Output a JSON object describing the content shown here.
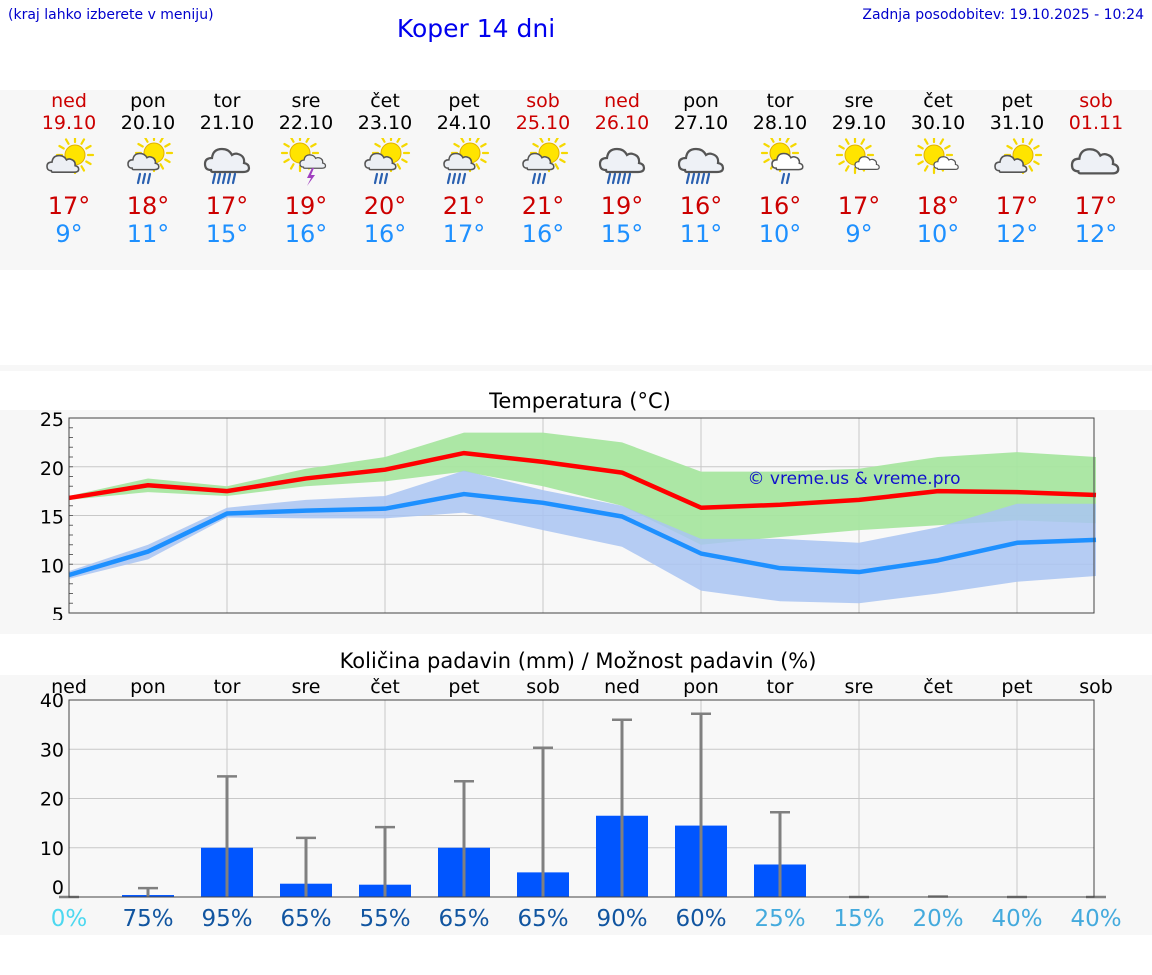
{
  "header": {
    "hint": "(kraj lahko izberete v meniju)",
    "title": "Koper 14 dni",
    "updated": "Zadnja posodobitev: 19.10.2025 - 10:24"
  },
  "days": [
    {
      "name": "ned",
      "date": "19.10",
      "weekend": true,
      "icon": "partly-cloudy-icon",
      "tmax": "17°",
      "tmin": "9°"
    },
    {
      "name": "pon",
      "date": "20.10",
      "weekend": false,
      "icon": "sun-cloud-rain-icon",
      "tmax": "18°",
      "tmin": "11°"
    },
    {
      "name": "tor",
      "date": "21.10",
      "weekend": false,
      "icon": "cloud-heavy-rain-icon",
      "tmax": "17°",
      "tmin": "15°"
    },
    {
      "name": "sre",
      "date": "22.10",
      "weekend": false,
      "icon": "sun-cloud-thunder-icon",
      "tmax": "19°",
      "tmin": "16°"
    },
    {
      "name": "čet",
      "date": "23.10",
      "weekend": false,
      "icon": "sun-cloud-rain-icon",
      "tmax": "20°",
      "tmin": "16°"
    },
    {
      "name": "pet",
      "date": "24.10",
      "weekend": false,
      "icon": "sun-cloud-heavy-rain-icon",
      "tmax": "21°",
      "tmin": "17°"
    },
    {
      "name": "sob",
      "date": "25.10",
      "weekend": true,
      "icon": "sun-cloud-rain-icon",
      "tmax": "21°",
      "tmin": "16°"
    },
    {
      "name": "ned",
      "date": "26.10",
      "weekend": true,
      "icon": "cloud-heavy-rain-icon",
      "tmax": "19°",
      "tmin": "15°"
    },
    {
      "name": "pon",
      "date": "27.10",
      "weekend": false,
      "icon": "cloud-heavy-rain-icon",
      "tmax": "16°",
      "tmin": "11°"
    },
    {
      "name": "tor",
      "date": "28.10",
      "weekend": false,
      "icon": "sun-cloud-light-rain-icon",
      "tmax": "16°",
      "tmin": "10°"
    },
    {
      "name": "sre",
      "date": "29.10",
      "weekend": false,
      "icon": "sun-small-cloud-icon",
      "tmax": "17°",
      "tmin": "9°"
    },
    {
      "name": "čet",
      "date": "30.10",
      "weekend": false,
      "icon": "sun-small-cloud-icon",
      "tmax": "18°",
      "tmin": "10°"
    },
    {
      "name": "pet",
      "date": "31.10",
      "weekend": false,
      "icon": "partly-cloudy-icon",
      "tmax": "17°",
      "tmin": "12°"
    },
    {
      "name": "sob",
      "date": "01.11",
      "weekend": true,
      "icon": "cloudy-icon",
      "tmax": "17°",
      "tmin": "12°"
    }
  ],
  "colors": {
    "max_line": "#ff0000",
    "max_band": "#a8e6a0",
    "min_line": "#1e90ff",
    "min_band": "#a9c4f2",
    "bar": "#0055ff",
    "whisker": "#808080",
    "weekend": "#cc0000",
    "min_text": "#1e90ff"
  },
  "chart_data": [
    {
      "type": "line",
      "title": "Temperatura (°C)",
      "watermark": "© vreme.us & vreme.pro",
      "ylim": [
        5,
        25
      ],
      "yticks": [
        "5",
        "10",
        "15",
        "20",
        "25"
      ],
      "series": [
        {
          "name": "max",
          "values": [
            16.8,
            18.1,
            17.5,
            18.8,
            19.7,
            21.4,
            20.5,
            19.4,
            15.8,
            16.1,
            16.6,
            17.5,
            17.4,
            17.1
          ],
          "upper": [
            17.0,
            18.8,
            18.0,
            19.8,
            21.0,
            23.5,
            23.5,
            22.5,
            19.5,
            19.5,
            19.8,
            21.0,
            21.5,
            21.0
          ],
          "lower": [
            16.6,
            17.4,
            17.0,
            18.0,
            18.5,
            19.5,
            18.0,
            16.0,
            12.0,
            12.8,
            13.5,
            14.0,
            14.5,
            14.2
          ]
        },
        {
          "name": "min",
          "values": [
            8.9,
            11.3,
            15.2,
            15.5,
            15.7,
            17.2,
            16.3,
            14.9,
            11.1,
            9.6,
            9.2,
            10.4,
            12.2,
            12.5
          ],
          "upper": [
            9.3,
            12.0,
            15.8,
            16.6,
            17.0,
            19.6,
            17.6,
            16.0,
            12.6,
            12.6,
            12.2,
            13.8,
            16.2,
            16.2
          ],
          "lower": [
            8.5,
            10.5,
            14.8,
            14.7,
            14.7,
            15.3,
            13.5,
            11.8,
            7.3,
            6.2,
            6.0,
            7.0,
            8.2,
            8.8
          ]
        }
      ]
    },
    {
      "type": "bar",
      "title": "Količina padavin (mm) / Možnost padavin (%)",
      "ylim": [
        0,
        40
      ],
      "yticks": [
        "0",
        "10",
        "20",
        "30",
        "40"
      ],
      "categories": [
        "ned",
        "pon",
        "tor",
        "sre",
        "čet",
        "pet",
        "sob",
        "ned",
        "pon",
        "tor",
        "sre",
        "čet",
        "pet",
        "sob"
      ],
      "values": [
        0,
        0.4,
        10,
        2.7,
        2.5,
        10,
        5,
        16.5,
        14.5,
        6.6,
        0,
        0,
        0,
        0
      ],
      "max_values": [
        0,
        1.8,
        24.5,
        12,
        14.2,
        23.5,
        30.3,
        36,
        37.2,
        17.2,
        0,
        0.1,
        0,
        0
      ],
      "probability": [
        "0%",
        "75%",
        "95%",
        "65%",
        "55%",
        "65%",
        "65%",
        "90%",
        "60%",
        "25%",
        "15%",
        "20%",
        "40%",
        "40%"
      ],
      "prob_colors": [
        "#4dd8f0",
        "#1155a0",
        "#1155a0",
        "#1155a0",
        "#1155a0",
        "#1155a0",
        "#1155a0",
        "#1155a0",
        "#1155a0",
        "#44aadd",
        "#44aadd",
        "#44aadd",
        "#44aadd",
        "#44aadd"
      ]
    }
  ]
}
